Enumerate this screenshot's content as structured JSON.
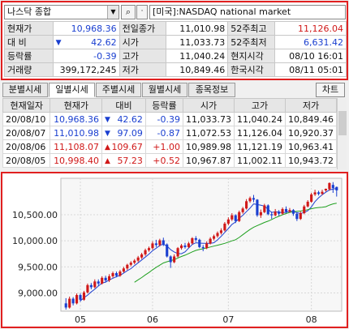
{
  "header": {
    "symbol": "나스닥 종합",
    "market_name": "[미국]:NASDAQ national market"
  },
  "info": {
    "rows": [
      [
        {
          "label": "현재가",
          "value": "10,968.36",
          "cls": "blue"
        },
        {
          "label": "전일종가",
          "value": "11,010.98",
          "cls": ""
        },
        {
          "label": "52주최고",
          "value": "11,126.04",
          "cls": "red"
        }
      ],
      [
        {
          "label": "대  비",
          "value": "42.62",
          "cls": "blue",
          "arrow": "▼"
        },
        {
          "label": "시가",
          "value": "11,033.73",
          "cls": ""
        },
        {
          "label": "52주최저",
          "value": "6,631.42",
          "cls": "blue"
        }
      ],
      [
        {
          "label": "등락률",
          "value": "-0.39",
          "cls": "blue"
        },
        {
          "label": "고가",
          "value": "11,040.24",
          "cls": ""
        },
        {
          "label": "현지시각",
          "value": "08/10 16:01",
          "cls": ""
        }
      ],
      [
        {
          "label": "거래량",
          "value": "399,172,245",
          "cls": ""
        },
        {
          "label": "저가",
          "value": "10,849.46",
          "cls": ""
        },
        {
          "label": "한국시각",
          "value": "08/11 05:01",
          "cls": ""
        }
      ]
    ]
  },
  "tabs": [
    "분별시세",
    "일별시세",
    "주별시세",
    "월별시세",
    "종목정보"
  ],
  "chart_button": "차트",
  "daily": {
    "headers": [
      "현재일자",
      "현재가",
      "대비",
      "등락률",
      "시가",
      "고가",
      "저가"
    ],
    "rows": [
      {
        "date": "20/08/10",
        "price": "10,968.36",
        "arrow": "▼",
        "diff": "42.62",
        "rate": "-0.39",
        "open": "11,033.73",
        "high": "11,040.24",
        "low": "10,849.46",
        "dir": "dn"
      },
      {
        "date": "20/08/07",
        "price": "11,010.98",
        "arrow": "▼",
        "diff": "97.09",
        "rate": "-0.87",
        "open": "11,072.53",
        "high": "11,126.04",
        "low": "10,920.37",
        "dir": "dn"
      },
      {
        "date": "20/08/06",
        "price": "11,108.07",
        "arrow": "▲",
        "diff": "109.67",
        "rate": "+1.00",
        "open": "10,989.98",
        "high": "11,121.19",
        "low": "10,963.41",
        "dir": "up"
      },
      {
        "date": "20/08/05",
        "price": "10,998.40",
        "arrow": "▲",
        "diff": "57.23",
        "rate": "+0.52",
        "open": "10,967.87",
        "high": "11,002.11",
        "low": "10,943.72",
        "dir": "up"
      }
    ]
  },
  "chart_data": {
    "type": "candlestick",
    "y_ticks": [
      "10,500.00",
      "10,000.00",
      "9,500.00",
      "9,000.00"
    ],
    "y_tick_values": [
      10500,
      10000,
      9500,
      9000
    ],
    "x_ticks": [
      "05",
      "06",
      "07",
      "08"
    ],
    "ylim": [
      8650,
      11200
    ],
    "candles": [
      {
        "o": 8800,
        "c": 8720,
        "h": 8900,
        "l": 8680
      },
      {
        "o": 8720,
        "c": 8890,
        "h": 8930,
        "l": 8700
      },
      {
        "o": 8890,
        "c": 8800,
        "h": 8920,
        "l": 8760
      },
      {
        "o": 8800,
        "c": 8960,
        "h": 8990,
        "l": 8780
      },
      {
        "o": 8960,
        "c": 8870,
        "h": 8990,
        "l": 8830
      },
      {
        "o": 8870,
        "c": 9010,
        "h": 9040,
        "l": 8850
      },
      {
        "o": 9010,
        "c": 9150,
        "h": 9180,
        "l": 8990
      },
      {
        "o": 9150,
        "c": 9110,
        "h": 9190,
        "l": 9070
      },
      {
        "o": 9110,
        "c": 9220,
        "h": 9260,
        "l": 9090
      },
      {
        "o": 9220,
        "c": 9180,
        "h": 9260,
        "l": 9140
      },
      {
        "o": 9180,
        "c": 9290,
        "h": 9320,
        "l": 9160
      },
      {
        "o": 9290,
        "c": 9240,
        "h": 9330,
        "l": 9200
      },
      {
        "o": 9240,
        "c": 9320,
        "h": 9360,
        "l": 9210
      },
      {
        "o": 9320,
        "c": 9380,
        "h": 9410,
        "l": 9290
      },
      {
        "o": 9380,
        "c": 9330,
        "h": 9410,
        "l": 9300
      },
      {
        "o": 9330,
        "c": 9410,
        "h": 9440,
        "l": 9310
      },
      {
        "o": 9410,
        "c": 9470,
        "h": 9500,
        "l": 9390
      },
      {
        "o": 9470,
        "c": 9540,
        "h": 9560,
        "l": 9440
      },
      {
        "o": 9540,
        "c": 9580,
        "h": 9610,
        "l": 9510
      },
      {
        "o": 9580,
        "c": 9620,
        "h": 9650,
        "l": 9550
      },
      {
        "o": 9620,
        "c": 9680,
        "h": 9710,
        "l": 9590
      },
      {
        "o": 9680,
        "c": 9740,
        "h": 9770,
        "l": 9650
      },
      {
        "o": 9740,
        "c": 9820,
        "h": 9850,
        "l": 9710
      },
      {
        "o": 9820,
        "c": 9860,
        "h": 9890,
        "l": 9790
      },
      {
        "o": 9860,
        "c": 9950,
        "h": 9990,
        "l": 9830
      },
      {
        "o": 9950,
        "c": 9920,
        "h": 10020,
        "l": 9880
      },
      {
        "o": 9920,
        "c": 10010,
        "h": 10040,
        "l": 9890
      },
      {
        "o": 10010,
        "c": 9930,
        "h": 10060,
        "l": 9900
      },
      {
        "o": 9930,
        "c": 9700,
        "h": 9950,
        "l": 9680
      },
      {
        "o": 9700,
        "c": 9590,
        "h": 9720,
        "l": 9480
      },
      {
        "o": 9590,
        "c": 9700,
        "h": 9740,
        "l": 9570
      },
      {
        "o": 9700,
        "c": 9860,
        "h": 9880,
        "l": 9680
      },
      {
        "o": 9860,
        "c": 9910,
        "h": 9940,
        "l": 9830
      },
      {
        "o": 9910,
        "c": 9880,
        "h": 9960,
        "l": 9850
      },
      {
        "o": 9880,
        "c": 9950,
        "h": 9980,
        "l": 9860
      },
      {
        "o": 9950,
        "c": 10050,
        "h": 10070,
        "l": 9930
      },
      {
        "o": 10050,
        "c": 10020,
        "h": 10090,
        "l": 9980
      },
      {
        "o": 10020,
        "c": 9880,
        "h": 10040,
        "l": 9860
      },
      {
        "o": 9880,
        "c": 9860,
        "h": 9920,
        "l": 9800
      },
      {
        "o": 9860,
        "c": 9950,
        "h": 9990,
        "l": 9840
      },
      {
        "o": 9950,
        "c": 10040,
        "h": 10070,
        "l": 9930
      },
      {
        "o": 10040,
        "c": 10090,
        "h": 10120,
        "l": 10010
      },
      {
        "o": 10090,
        "c": 10150,
        "h": 10180,
        "l": 10060
      },
      {
        "o": 10150,
        "c": 10200,
        "h": 10240,
        "l": 10120
      },
      {
        "o": 10200,
        "c": 10330,
        "h": 10360,
        "l": 10180
      },
      {
        "o": 10330,
        "c": 10410,
        "h": 10450,
        "l": 10300
      },
      {
        "o": 10410,
        "c": 10490,
        "h": 10530,
        "l": 10380
      },
      {
        "o": 10490,
        "c": 10380,
        "h": 10510,
        "l": 10340
      },
      {
        "o": 10380,
        "c": 10550,
        "h": 10580,
        "l": 10360
      },
      {
        "o": 10550,
        "c": 10620,
        "h": 10650,
        "l": 10520
      },
      {
        "o": 10620,
        "c": 10760,
        "h": 10800,
        "l": 10600
      },
      {
        "o": 10760,
        "c": 10820,
        "h": 10850,
        "l": 10730
      },
      {
        "o": 10820,
        "c": 10790,
        "h": 10880,
        "l": 10740
      },
      {
        "o": 10790,
        "c": 10490,
        "h": 10800,
        "l": 10460
      },
      {
        "o": 10490,
        "c": 10550,
        "h": 10600,
        "l": 10440
      },
      {
        "o": 10550,
        "c": 10680,
        "h": 10710,
        "l": 10530
      },
      {
        "o": 10680,
        "c": 10510,
        "h": 10700,
        "l": 10490
      },
      {
        "o": 10510,
        "c": 10490,
        "h": 10560,
        "l": 10420
      },
      {
        "o": 10490,
        "c": 10560,
        "h": 10610,
        "l": 10470
      },
      {
        "o": 10560,
        "c": 10520,
        "h": 10590,
        "l": 10480
      },
      {
        "o": 10520,
        "c": 10610,
        "h": 10640,
        "l": 10500
      },
      {
        "o": 10610,
        "c": 10560,
        "h": 10660,
        "l": 10530
      },
      {
        "o": 10560,
        "c": 10590,
        "h": 10630,
        "l": 10540
      },
      {
        "o": 10590,
        "c": 10520,
        "h": 10610,
        "l": 10480
      },
      {
        "o": 10520,
        "c": 10420,
        "h": 10540,
        "l": 10380
      },
      {
        "o": 10420,
        "c": 10530,
        "h": 10560,
        "l": 10400
      },
      {
        "o": 10530,
        "c": 10660,
        "h": 10690,
        "l": 10510
      },
      {
        "o": 10660,
        "c": 10750,
        "h": 10780,
        "l": 10640
      },
      {
        "o": 10750,
        "c": 10890,
        "h": 10920,
        "l": 10730
      },
      {
        "o": 10890,
        "c": 10930,
        "h": 10980,
        "l": 10860
      },
      {
        "o": 10930,
        "c": 10900,
        "h": 10960,
        "l": 10870
      },
      {
        "o": 10902,
        "c": 10941,
        "h": 10980,
        "l": 10880
      },
      {
        "o": 10967.87,
        "c": 10998.4,
        "h": 11002.11,
        "l": 10943.72
      },
      {
        "o": 10989.98,
        "c": 11108.07,
        "h": 11121.19,
        "l": 10963.41
      },
      {
        "o": 11072.53,
        "c": 11010.98,
        "h": 11126.04,
        "l": 10920.37
      },
      {
        "o": 11033.73,
        "c": 10968.36,
        "h": 11040.24,
        "l": 10849.46
      }
    ],
    "ma_short_color": "#2040d0",
    "ma_long_color": "#20a020",
    "up_color": "#d01818",
    "down_color": "#1a3fd0"
  }
}
